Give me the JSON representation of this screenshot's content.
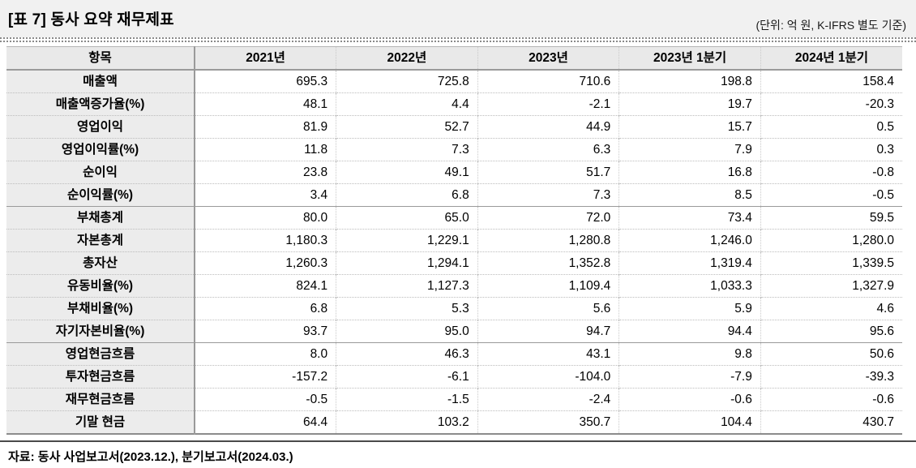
{
  "header": {
    "title": "[표 7] 동사 요약 재무제표",
    "unit_note": "(단위: 억 원, K-IFRS 별도 기준)"
  },
  "table": {
    "columns": [
      "항목",
      "2021년",
      "2022년",
      "2023년",
      "2023년 1분기",
      "2024년 1분기"
    ],
    "rows": [
      {
        "label": "매출액",
        "values": [
          "695.3",
          "725.8",
          "710.6",
          "198.8",
          "158.4"
        ],
        "section_end": false
      },
      {
        "label": "매출액증가율(%)",
        "values": [
          "48.1",
          "4.4",
          "-2.1",
          "19.7",
          "-20.3"
        ],
        "section_end": false
      },
      {
        "label": "영업이익",
        "values": [
          "81.9",
          "52.7",
          "44.9",
          "15.7",
          "0.5"
        ],
        "section_end": false
      },
      {
        "label": "영업이익률(%)",
        "values": [
          "11.8",
          "7.3",
          "6.3",
          "7.9",
          "0.3"
        ],
        "section_end": false
      },
      {
        "label": "순이익",
        "values": [
          "23.8",
          "49.1",
          "51.7",
          "16.8",
          "-0.8"
        ],
        "section_end": false
      },
      {
        "label": "순이익률(%)",
        "values": [
          "3.4",
          "6.8",
          "7.3",
          "8.5",
          "-0.5"
        ],
        "section_end": true
      },
      {
        "label": "부채총계",
        "values": [
          "80.0",
          "65.0",
          "72.0",
          "73.4",
          "59.5"
        ],
        "section_end": false
      },
      {
        "label": "자본총계",
        "values": [
          "1,180.3",
          "1,229.1",
          "1,280.8",
          "1,246.0",
          "1,280.0"
        ],
        "section_end": false
      },
      {
        "label": "총자산",
        "values": [
          "1,260.3",
          "1,294.1",
          "1,352.8",
          "1,319.4",
          "1,339.5"
        ],
        "section_end": false
      },
      {
        "label": "유동비율(%)",
        "values": [
          "824.1",
          "1,127.3",
          "1,109.4",
          "1,033.3",
          "1,327.9"
        ],
        "section_end": false
      },
      {
        "label": "부채비율(%)",
        "values": [
          "6.8",
          "5.3",
          "5.6",
          "5.9",
          "4.6"
        ],
        "section_end": false
      },
      {
        "label": "자기자본비율(%)",
        "values": [
          "93.7",
          "95.0",
          "94.7",
          "94.4",
          "95.6"
        ],
        "section_end": true
      },
      {
        "label": "영업현금흐름",
        "values": [
          "8.0",
          "46.3",
          "43.1",
          "9.8",
          "50.6"
        ],
        "section_end": false
      },
      {
        "label": "투자현금흐름",
        "values": [
          "-157.2",
          "-6.1",
          "-104.0",
          "-7.9",
          "-39.3"
        ],
        "section_end": false
      },
      {
        "label": "재무현금흐름",
        "values": [
          "-0.5",
          "-1.5",
          "-2.4",
          "-0.6",
          "-0.6"
        ],
        "section_end": false
      },
      {
        "label": "기말 현금",
        "values": [
          "64.4",
          "103.2",
          "350.7",
          "104.4",
          "430.7"
        ],
        "section_end": false
      }
    ]
  },
  "footer": {
    "source_note": "자료: 동사 사업보고서(2023.12.), 분기보고서(2024.03.)"
  },
  "colors": {
    "title_band_bg": "#f1f1f1",
    "header_cell_bg": "#e9e9e9",
    "label_cell_bg": "#ececec",
    "section_line": "#9a9a9a",
    "bottom_rule": "#4a4a4a"
  }
}
